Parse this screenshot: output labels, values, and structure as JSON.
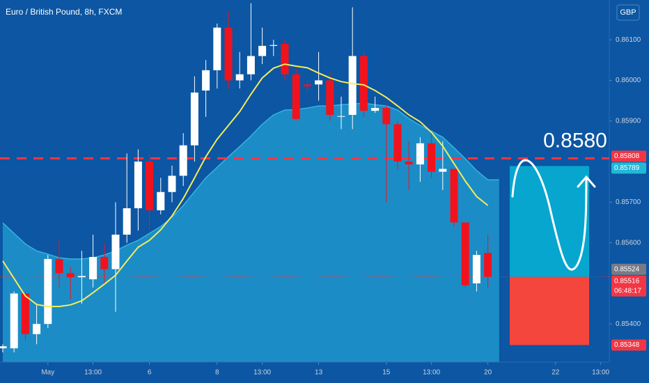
{
  "chart_data": {
    "type": "candlestick",
    "title": "Euro / British Pound, 8h, FXCM",
    "currency": "GBP",
    "annotation": "0.8580",
    "categories": [
      null,
      null,
      null,
      null,
      "May",
      null,
      null,
      null,
      "13:00",
      null,
      null,
      null,
      null,
      "6",
      null,
      null,
      null,
      null,
      null,
      "8",
      null,
      null,
      null,
      "13:00",
      null,
      null,
      null,
      null,
      "13",
      null,
      null,
      null,
      null,
      null,
      "15",
      null,
      null,
      null,
      "13:00",
      null,
      null,
      null,
      null,
      "20",
      null,
      null,
      null,
      null,
      null,
      "22",
      null,
      null,
      null,
      "13:00"
    ],
    "open": [
      0.8534,
      0.8534,
      0.85475,
      0.85375,
      0.854,
      0.8556,
      0.85525,
      0.85515,
      0.8551,
      0.85565,
      0.85535,
      0.8562,
      0.85685,
      0.858,
      0.8568,
      0.85725,
      0.85765,
      0.8584,
      0.85975,
      0.86025,
      0.8613,
      0.86,
      0.86015,
      0.8606,
      0.86085,
      0.8609,
      0.86015,
      0.8599,
      0.8599,
      0.86,
      0.85912,
      0.85915,
      0.8606,
      0.85925,
      0.85932,
      0.85892,
      0.858,
      0.85793,
      0.85845,
      0.85775,
      0.85782,
      0.8565,
      0.855,
      0.85575,
      null,
      null,
      null,
      null,
      null,
      null,
      null,
      null,
      null,
      null
    ],
    "high": [
      0.8535,
      0.8548,
      0.8548,
      0.8545,
      0.8557,
      0.8561,
      0.8554,
      0.8558,
      0.8562,
      0.856,
      0.857,
      0.8582,
      0.8583,
      0.8582,
      0.8576,
      0.8579,
      0.8587,
      0.8601,
      0.8605,
      0.8614,
      0.8617,
      0.8607,
      0.8619,
      0.8613,
      0.861,
      0.861,
      0.8603,
      0.86,
      0.8607,
      0.8602,
      0.8596,
      0.8618,
      0.8607,
      0.8596,
      0.8594,
      0.859,
      0.8585,
      0.8586,
      0.8587,
      0.8585,
      0.8578,
      0.8565,
      0.8558,
      0.8562,
      null,
      null,
      null,
      null,
      null,
      null,
      null,
      null,
      null,
      null
    ],
    "low": [
      0.8533,
      0.8533,
      0.8536,
      0.8535,
      0.8539,
      0.8549,
      0.8546,
      0.8545,
      0.8549,
      0.855,
      0.8543,
      0.856,
      0.8563,
      0.8563,
      0.8567,
      0.857,
      0.8574,
      0.858,
      0.8591,
      0.8598,
      0.8598,
      0.8598,
      0.86,
      0.8604,
      0.8606,
      0.86,
      0.859,
      0.8597,
      0.8595,
      0.859,
      0.8588,
      0.8588,
      0.8591,
      0.8592,
      0.857,
      0.8578,
      0.8573,
      0.8575,
      0.8576,
      0.8573,
      0.8564,
      0.8549,
      0.8548,
      0.8549,
      null,
      null,
      null,
      null,
      null,
      null,
      null,
      null,
      null,
      null
    ],
    "close": [
      0.85345,
      0.85475,
      0.85375,
      0.854,
      0.8556,
      0.85525,
      0.85515,
      0.85518,
      0.85565,
      0.85535,
      0.8562,
      0.85685,
      0.858,
      0.8568,
      0.85725,
      0.85765,
      0.8584,
      0.8597,
      0.86025,
      0.8613,
      0.86,
      0.86015,
      0.8606,
      0.86085,
      0.86087,
      0.86015,
      0.85905,
      0.85985,
      0.86,
      0.85915,
      0.85912,
      0.8606,
      0.85925,
      0.85932,
      0.85892,
      0.858,
      0.85793,
      0.85845,
      0.85775,
      0.85782,
      0.8565,
      0.85495,
      0.8557,
      0.85516,
      null,
      null,
      null,
      null,
      null,
      null,
      null,
      null,
      null,
      null
    ],
    "up_color": "#ffffff",
    "down_color": "#f0131e",
    "ma": {
      "color": "#f5ec5a",
      "values": [
        0.85555,
        0.85512,
        0.85469,
        0.85448,
        0.85443,
        0.85443,
        0.85447,
        0.85457,
        0.85477,
        0.85498,
        0.8552,
        0.85555,
        0.85589,
        0.85606,
        0.85632,
        0.85666,
        0.85709,
        0.8576,
        0.85812,
        0.85855,
        0.85889,
        0.85923,
        0.85966,
        0.86006,
        0.8603,
        0.8604,
        0.86035,
        0.86031,
        0.86018,
        0.86006,
        0.85997,
        0.85992,
        0.85989,
        0.85975,
        0.85958,
        0.85937,
        0.85915,
        0.85898,
        0.85872,
        0.85838,
        0.85795,
        0.85752,
        0.85714,
        0.85692,
        null,
        null,
        null,
        null,
        null,
        null,
        null,
        null,
        null,
        null
      ]
    },
    "cloud": {
      "color": "#1c8cc6",
      "values": [
        0.85649,
        0.85623,
        0.85597,
        0.8558,
        0.85572,
        0.85563,
        0.8556,
        0.8556,
        0.85563,
        0.8557,
        0.8558,
        0.85594,
        0.85606,
        0.85623,
        0.8564,
        0.85663,
        0.85692,
        0.85726,
        0.8576,
        0.85786,
        0.85812,
        0.85837,
        0.85863,
        0.85892,
        0.85915,
        0.85927,
        0.85928,
        0.85932,
        0.85937,
        0.85937,
        0.8594,
        0.85942,
        0.85944,
        0.8594,
        0.85937,
        0.85927,
        0.85906,
        0.85889,
        0.85875,
        0.8586,
        0.85834,
        0.85807,
        0.85778,
        0.85755,
        null,
        null,
        null,
        null,
        null,
        null,
        null,
        null,
        null,
        null
      ]
    },
    "ylim": [
      0.85306,
      0.86198
    ],
    "yticks": [
      {
        "value": 0.861,
        "label": "0.86100"
      },
      {
        "value": 0.86,
        "label": "0.86000"
      },
      {
        "value": 0.859,
        "label": "0.85900"
      },
      {
        "value": 0.857,
        "label": "0.85700"
      },
      {
        "value": 0.856,
        "label": "0.85600"
      },
      {
        "value": 0.854,
        "label": "0.85400"
      }
    ],
    "markers": [
      {
        "value": 0.85808,
        "color": "#f23645"
      },
      {
        "value": 0.85789,
        "color": "#22b8d6"
      },
      {
        "value": 0.85524,
        "color": "#787b86"
      },
      {
        "value": 0.85516,
        "color": "#f23645",
        "countdown": "06:48:17"
      },
      {
        "value": 0.85348,
        "color": "#f23645"
      }
    ]
  }
}
